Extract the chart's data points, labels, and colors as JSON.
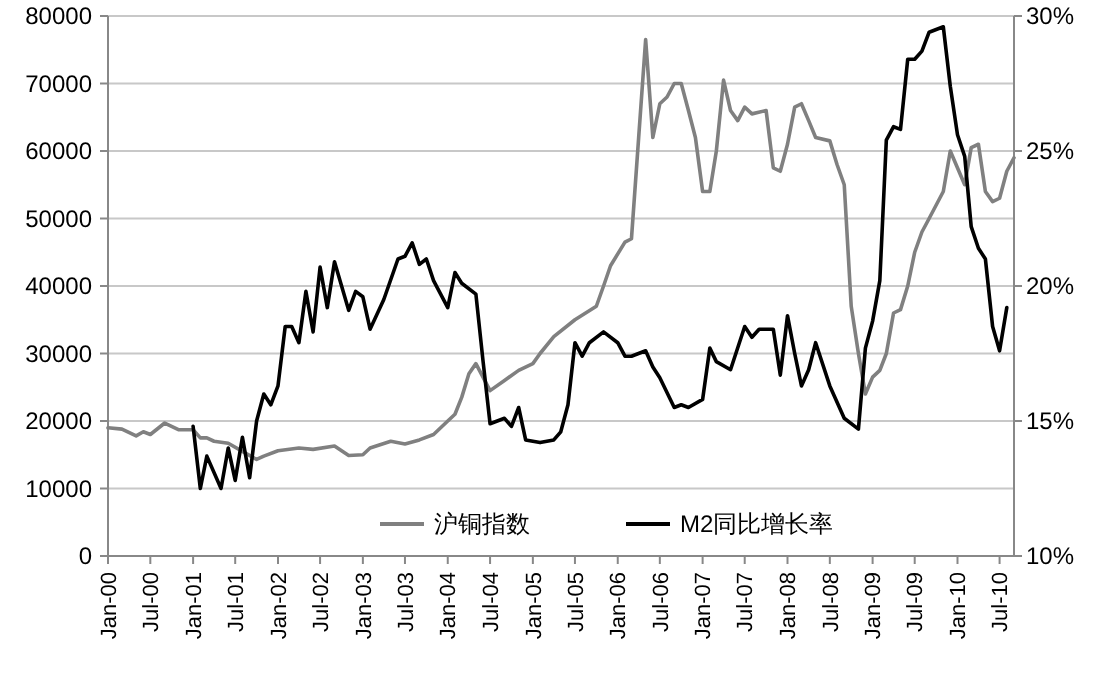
{
  "chart_data": {
    "type": "line",
    "xlim": [
      "2000-01",
      "2010-09"
    ],
    "xticks": [
      {
        "value": "2000-01",
        "label": "Jan-00"
      },
      {
        "value": "2000-07",
        "label": "Jul-00"
      },
      {
        "value": "2001-01",
        "label": "Jan-01"
      },
      {
        "value": "2001-07",
        "label": "Jul-01"
      },
      {
        "value": "2002-01",
        "label": "Jan-02"
      },
      {
        "value": "2002-07",
        "label": "Jul-02"
      },
      {
        "value": "2003-01",
        "label": "Jan-03"
      },
      {
        "value": "2003-07",
        "label": "Jul-03"
      },
      {
        "value": "2004-01",
        "label": "Jan-04"
      },
      {
        "value": "2004-07",
        "label": "Jul-04"
      },
      {
        "value": "2005-01",
        "label": "Jan-05"
      },
      {
        "value": "2005-07",
        "label": "Jul-05"
      },
      {
        "value": "2006-01",
        "label": "Jan-06"
      },
      {
        "value": "2006-07",
        "label": "Jul-06"
      },
      {
        "value": "2007-01",
        "label": "Jan-07"
      },
      {
        "value": "2007-07",
        "label": "Jul-07"
      },
      {
        "value": "2008-01",
        "label": "Jan-08"
      },
      {
        "value": "2008-07",
        "label": "Jul-08"
      },
      {
        "value": "2009-01",
        "label": "Jan-09"
      },
      {
        "value": "2009-07",
        "label": "Jul-09"
      },
      {
        "value": "2010-01",
        "label": "Jan-10"
      },
      {
        "value": "2010-07",
        "label": "Jul-10"
      }
    ],
    "ylim": [
      0,
      80000
    ],
    "yticks": [
      0,
      10000,
      20000,
      30000,
      40000,
      50000,
      60000,
      70000,
      80000
    ],
    "y2lim": [
      10,
      30
    ],
    "y2ticks": [
      {
        "value": 10,
        "label": "10%"
      },
      {
        "value": 15,
        "label": "15%"
      },
      {
        "value": 20,
        "label": "20%"
      },
      {
        "value": 25,
        "label": "25%"
      },
      {
        "value": 30,
        "label": "30%"
      }
    ],
    "grid": "y",
    "legend": "bottom",
    "marker": "none",
    "line_style": "solid",
    "series": [
      {
        "name": "沪铜指数",
        "color": "#808080",
        "axis": "y",
        "x": [
          "2000-01",
          "2000-03",
          "2000-05",
          "2000-06",
          "2000-07",
          "2000-09",
          "2000-11",
          "2001-01",
          "2001-02",
          "2001-03",
          "2001-04",
          "2001-06",
          "2001-08",
          "2001-10",
          "2001-11",
          "2002-01",
          "2002-04",
          "2002-06",
          "2002-09",
          "2002-11",
          "2003-01",
          "2003-02",
          "2003-05",
          "2003-07",
          "2003-09",
          "2003-11",
          "2004-01",
          "2004-02",
          "2004-03",
          "2004-04",
          "2004-05",
          "2004-07",
          "2004-09",
          "2004-11",
          "2005-01",
          "2005-02",
          "2005-04",
          "2005-07",
          "2005-10",
          "2005-11",
          "2005-12",
          "2006-02",
          "2006-03",
          "2006-04",
          "2006-05",
          "2006-06",
          "2006-07",
          "2006-08",
          "2006-09",
          "2006-10",
          "2006-11",
          "2006-12",
          "2007-01",
          "2007-02",
          "2007-03",
          "2007-04",
          "2007-05",
          "2007-06",
          "2007-07",
          "2007-08",
          "2007-10",
          "2007-11",
          "2007-12",
          "2008-01",
          "2008-02",
          "2008-03",
          "2008-04",
          "2008-05",
          "2008-07",
          "2008-08",
          "2008-09",
          "2008-10",
          "2008-11",
          "2008-12",
          "2009-01",
          "2009-02",
          "2009-03",
          "2009-04",
          "2009-05",
          "2009-06",
          "2009-07",
          "2009-08",
          "2009-09",
          "2009-11",
          "2009-12",
          "2010-02",
          "2010-03",
          "2010-04",
          "2010-05",
          "2010-06",
          "2010-07",
          "2010-08",
          "2010-09"
        ],
        "values": [
          19000,
          18800,
          17800,
          18400,
          18000,
          19700,
          18700,
          18700,
          17500,
          17500,
          17000,
          16700,
          15500,
          14300,
          14800,
          15600,
          16000,
          15800,
          16300,
          14900,
          15000,
          16000,
          17000,
          16600,
          17200,
          18000,
          20000,
          21000,
          23500,
          27000,
          28500,
          24500,
          26000,
          27500,
          28500,
          30000,
          32500,
          35000,
          37000,
          40000,
          43000,
          46500,
          47000,
          62000,
          76500,
          62000,
          67000,
          68000,
          70000,
          70000,
          66000,
          62000,
          54000,
          54000,
          60000,
          70500,
          66000,
          64500,
          66500,
          65500,
          66000,
          57500,
          57000,
          61000,
          66500,
          67000,
          64500,
          62000,
          61500,
          58000,
          55000,
          37000,
          30000,
          24000,
          26500,
          27500,
          30000,
          36000,
          36500,
          40000,
          45000,
          48000,
          50000,
          54000,
          60000,
          55000,
          60500,
          61000,
          54000,
          52500,
          53000,
          57000,
          59000
        ]
      },
      {
        "name": "M2同比增长率",
        "color": "#000000",
        "axis": "y2",
        "x": [
          "2001-01",
          "2001-02",
          "2001-03",
          "2001-05",
          "2001-06",
          "2001-07",
          "2001-08",
          "2001-09",
          "2001-10",
          "2001-11",
          "2001-12",
          "2002-01",
          "2002-02",
          "2002-03",
          "2002-04",
          "2002-05",
          "2002-06",
          "2002-07",
          "2002-08",
          "2002-09",
          "2002-11",
          "2002-12",
          "2003-01",
          "2003-02",
          "2003-04",
          "2003-06",
          "2003-07",
          "2003-08",
          "2003-09",
          "2003-10",
          "2003-11",
          "2004-01",
          "2004-02",
          "2004-03",
          "2004-05",
          "2004-06",
          "2004-07",
          "2004-08",
          "2004-09",
          "2004-10",
          "2004-11",
          "2004-12",
          "2005-02",
          "2005-04",
          "2005-05",
          "2005-06",
          "2005-07",
          "2005-08",
          "2005-09",
          "2005-11",
          "2006-01",
          "2006-02",
          "2006-03",
          "2006-05",
          "2006-06",
          "2006-07",
          "2006-09",
          "2006-10",
          "2006-11",
          "2007-01",
          "2007-02",
          "2007-03",
          "2007-05",
          "2007-07",
          "2007-08",
          "2007-09",
          "2007-11",
          "2007-12",
          "2008-01",
          "2008-02",
          "2008-03",
          "2008-04",
          "2008-05",
          "2008-07",
          "2008-09",
          "2008-11",
          "2008-12",
          "2009-01",
          "2009-02",
          "2009-03",
          "2009-04",
          "2009-05",
          "2009-06",
          "2009-07",
          "2009-08",
          "2009-09",
          "2009-11",
          "2009-12",
          "2010-01",
          "2010-02",
          "2010-03",
          "2010-04",
          "2010-05",
          "2010-06",
          "2010-07",
          "2010-08"
        ],
        "values": [
          14.8,
          12.5,
          13.7,
          12.5,
          14.0,
          12.8,
          14.4,
          12.9,
          15.0,
          16.0,
          15.6,
          16.3,
          18.5,
          18.5,
          17.9,
          19.8,
          18.3,
          20.7,
          19.2,
          20.9,
          19.1,
          19.8,
          19.6,
          18.4,
          19.5,
          21.0,
          21.1,
          21.6,
          20.8,
          21.0,
          20.2,
          19.2,
          20.5,
          20.1,
          19.7,
          17.2,
          14.9,
          15.0,
          15.1,
          14.8,
          15.5,
          14.3,
          14.2,
          14.3,
          14.6,
          15.6,
          17.9,
          17.4,
          17.9,
          18.3,
          17.9,
          17.4,
          17.4,
          17.6,
          17.0,
          16.6,
          15.5,
          15.6,
          15.5,
          15.8,
          17.7,
          17.2,
          16.9,
          18.5,
          18.1,
          18.4,
          18.4,
          16.7,
          18.9,
          17.5,
          16.3,
          16.9,
          17.9,
          16.3,
          15.1,
          14.7,
          17.7,
          18.7,
          20.2,
          25.4,
          25.9,
          25.8,
          28.4,
          28.4,
          28.7,
          29.4,
          29.6,
          27.4,
          25.6,
          24.8,
          22.2,
          21.4,
          21.0,
          18.5,
          17.6,
          19.2
        ]
      }
    ]
  }
}
